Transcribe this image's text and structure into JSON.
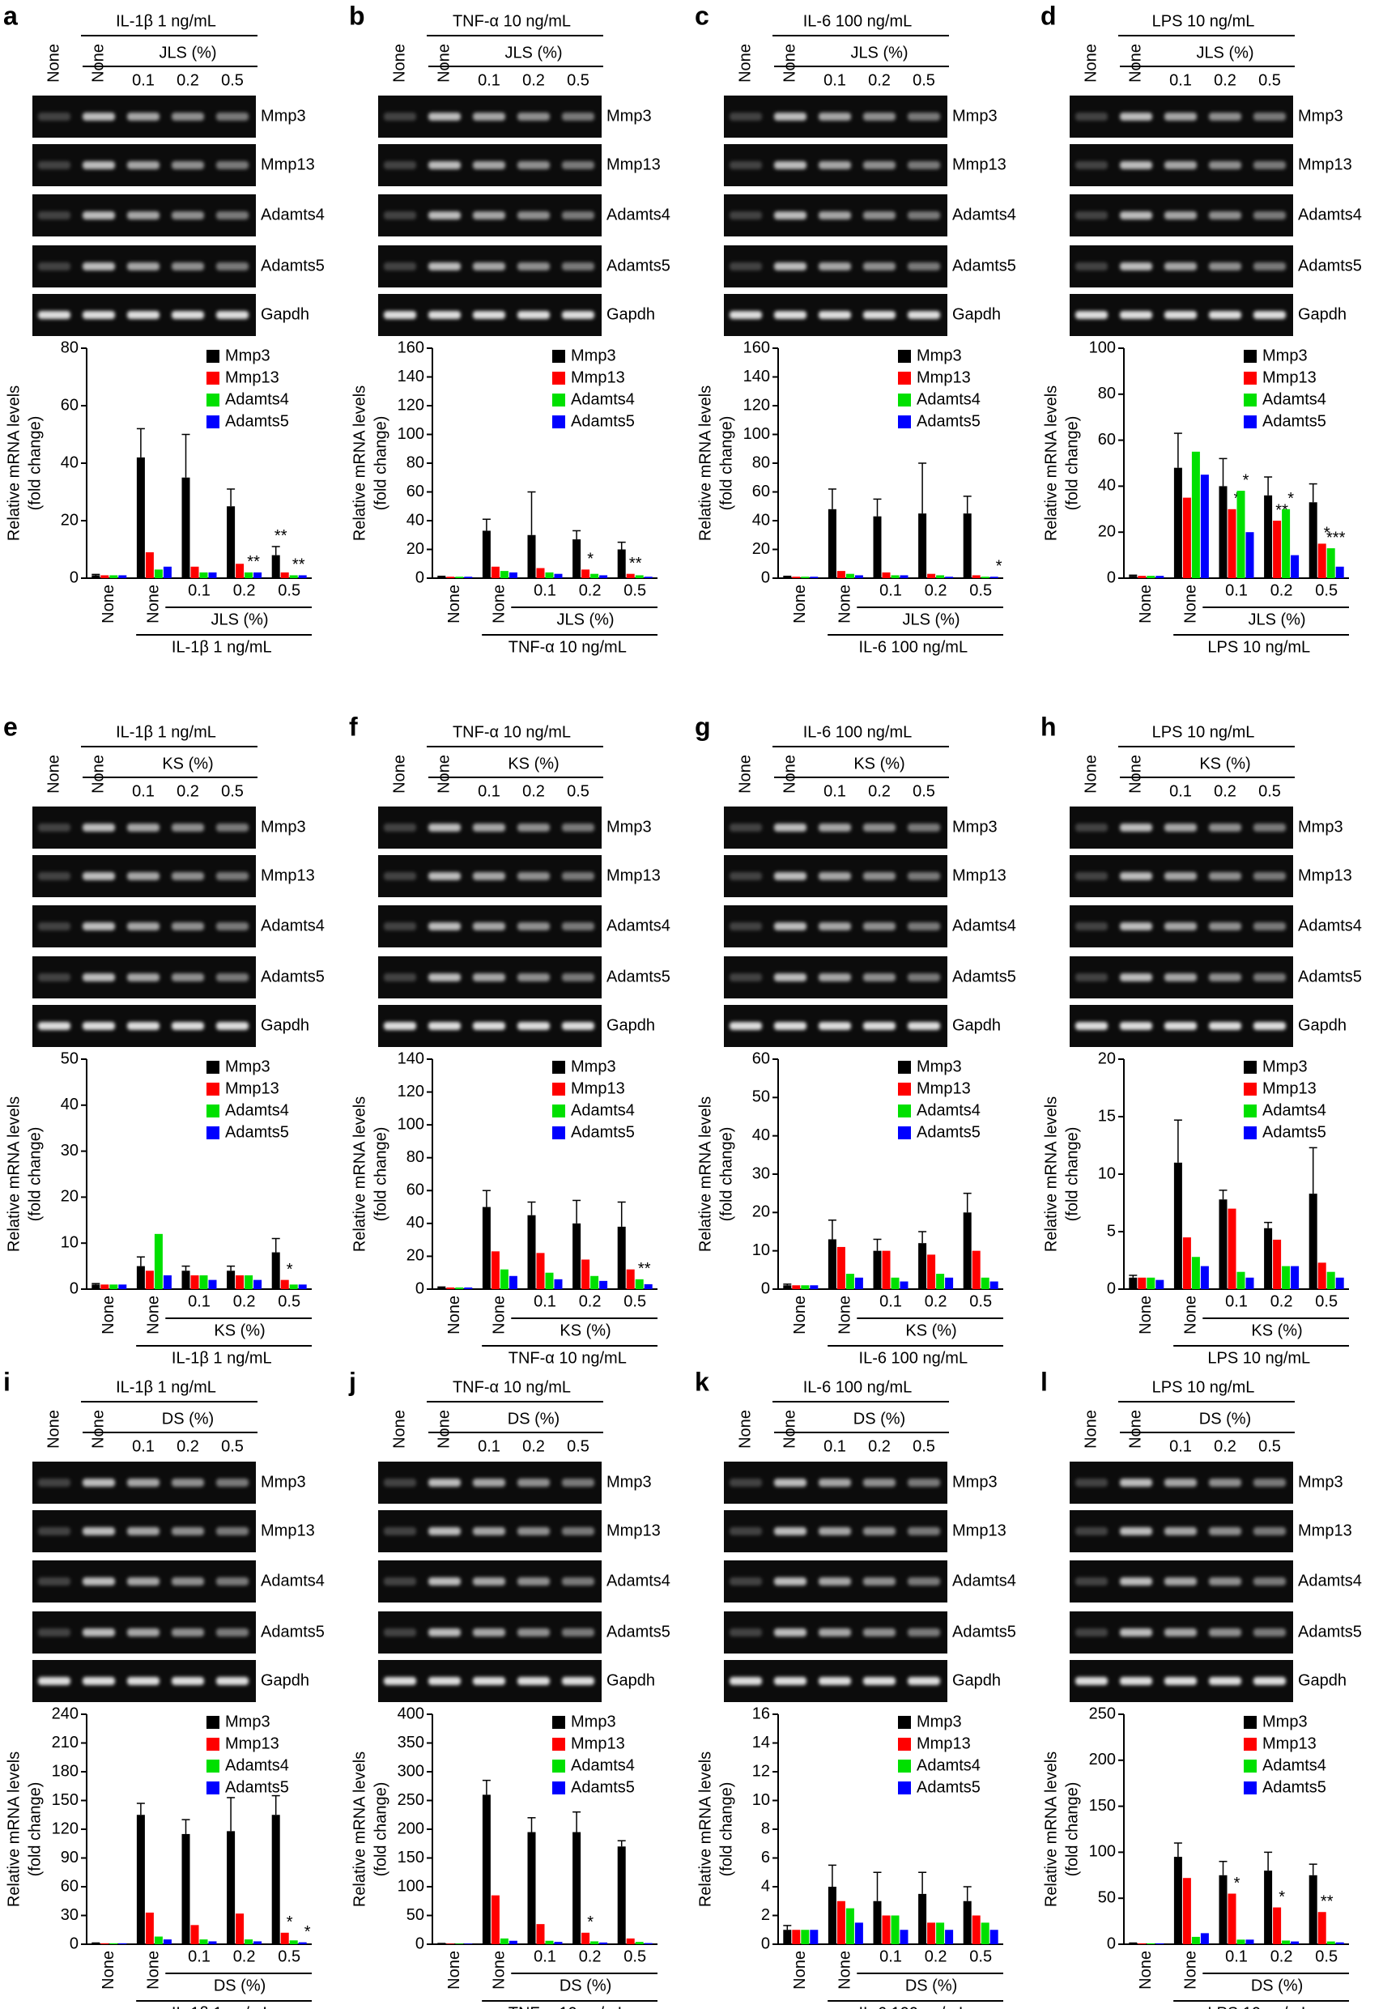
{
  "chart_data": [
    {
      "type": "bar",
      "letter": "a",
      "title": "IL-1β 1 ng/mL",
      "group_label": "JLS (%)",
      "categories": [
        "None",
        "None",
        "0.1",
        "0.2",
        "0.5"
      ],
      "bands": [
        "Mmp3",
        "Mmp13",
        "Adamts4",
        "Adamts5",
        "Gapdh"
      ],
      "ylabel": [
        "Relative mRNA levels",
        "(fold change)"
      ],
      "ylim": [
        0,
        80
      ],
      "yticks": [
        0,
        20,
        40,
        60,
        80
      ],
      "series": [
        {
          "name": "Mmp3",
          "color": "#000000",
          "values": [
            1,
            42,
            35,
            25,
            8
          ],
          "errors": [
            0.3,
            10,
            15,
            6,
            3
          ],
          "stars": [
            null,
            null,
            null,
            null,
            "**"
          ]
        },
        {
          "name": "Mmp13",
          "color": "#ff0000",
          "values": [
            1,
            9,
            4,
            5,
            2
          ]
        },
        {
          "name": "Adamts4",
          "color": "#00e000",
          "values": [
            1,
            3,
            2,
            2,
            1
          ],
          "stars": [
            null,
            null,
            null,
            "**",
            "**"
          ]
        },
        {
          "name": "Adamts5",
          "color": "#0000ff",
          "values": [
            1,
            4,
            2,
            2,
            1
          ]
        }
      ]
    },
    {
      "type": "bar",
      "letter": "b",
      "title": "TNF-α 10 ng/mL",
      "group_label": "JLS (%)",
      "categories": [
        "None",
        "None",
        "0.1",
        "0.2",
        "0.5"
      ],
      "bands": [
        "Mmp3",
        "Mmp13",
        "Adamts4",
        "Adamts5",
        "Gapdh"
      ],
      "ylabel": [
        "Relative mRNA levels",
        "(fold change)"
      ],
      "ylim": [
        0,
        160
      ],
      "yticks": [
        0,
        20,
        40,
        60,
        80,
        100,
        120,
        140,
        160
      ],
      "series": [
        {
          "name": "Mmp3",
          "color": "#000000",
          "values": [
            1,
            33,
            30,
            27,
            20
          ],
          "errors": [
            0.3,
            8,
            30,
            6,
            5
          ]
        },
        {
          "name": "Mmp13",
          "color": "#ff0000",
          "values": [
            1,
            8,
            7,
            6,
            3
          ],
          "stars": [
            null,
            null,
            null,
            "*",
            "**"
          ]
        },
        {
          "name": "Adamts4",
          "color": "#00e000",
          "values": [
            1,
            5,
            4,
            3,
            2
          ]
        },
        {
          "name": "Adamts5",
          "color": "#0000ff",
          "values": [
            1,
            4,
            3,
            2,
            1
          ]
        }
      ]
    },
    {
      "type": "bar",
      "letter": "c",
      "title": "IL-6 100 ng/mL",
      "group_label": "JLS (%)",
      "categories": [
        "None",
        "None",
        "0.1",
        "0.2",
        "0.5"
      ],
      "bands": [
        "Mmp3",
        "Mmp13",
        "Adamts4",
        "Adamts5",
        "Gapdh"
      ],
      "ylabel": [
        "Relative mRNA levels",
        "(fold change)"
      ],
      "ylim": [
        0,
        160
      ],
      "yticks": [
        0,
        20,
        40,
        60,
        80,
        100,
        120,
        140,
        160
      ],
      "series": [
        {
          "name": "Mmp3",
          "color": "#000000",
          "values": [
            1,
            48,
            43,
            45,
            45
          ],
          "errors": [
            0.3,
            14,
            12,
            35,
            12
          ]
        },
        {
          "name": "Mmp13",
          "color": "#ff0000",
          "values": [
            1,
            5,
            4,
            3,
            2
          ]
        },
        {
          "name": "Adamts4",
          "color": "#00e000",
          "values": [
            1,
            3,
            2,
            2,
            1
          ]
        },
        {
          "name": "Adamts5",
          "color": "#0000ff",
          "values": [
            1,
            2,
            2,
            1,
            1
          ],
          "stars": [
            null,
            null,
            null,
            null,
            "*"
          ]
        }
      ]
    },
    {
      "type": "bar",
      "letter": "d",
      "title": "LPS 10 ng/mL",
      "group_label": "JLS (%)",
      "categories": [
        "None",
        "None",
        "0.1",
        "0.2",
        "0.5"
      ],
      "bands": [
        "Mmp3",
        "Mmp13",
        "Adamts4",
        "Adamts5",
        "Gapdh"
      ],
      "ylabel": [
        "Relative mRNA levels",
        "(fold change)"
      ],
      "ylim": [
        0,
        100
      ],
      "yticks": [
        0,
        20,
        40,
        60,
        80,
        100
      ],
      "series": [
        {
          "name": "Mmp3",
          "color": "#000000",
          "values": [
            1,
            48,
            40,
            36,
            33
          ],
          "errors": [
            0.3,
            15,
            12,
            8,
            8
          ]
        },
        {
          "name": "Mmp13",
          "color": "#ff0000",
          "values": [
            1,
            35,
            30,
            25,
            15
          ],
          "stars": [
            null,
            null,
            "*",
            "**",
            "*"
          ]
        },
        {
          "name": "Adamts4",
          "color": "#00e000",
          "values": [
            1,
            55,
            38,
            30,
            13
          ],
          "stars": [
            null,
            null,
            "*",
            "*",
            "***"
          ]
        },
        {
          "name": "Adamts5",
          "color": "#0000ff",
          "values": [
            1,
            45,
            20,
            10,
            5
          ]
        }
      ]
    },
    {
      "type": "bar",
      "letter": "e",
      "title": "IL-1β 1 ng/mL",
      "group_label": "KS (%)",
      "categories": [
        "None",
        "None",
        "0.1",
        "0.2",
        "0.5"
      ],
      "bands": [
        "Mmp3",
        "Mmp13",
        "Adamts4",
        "Adamts5",
        "Gapdh"
      ],
      "ylabel": [
        "Relative mRNA levels",
        "(fold change)"
      ],
      "ylim": [
        0,
        50
      ],
      "yticks": [
        0,
        10,
        20,
        30,
        40,
        50
      ],
      "series": [
        {
          "name": "Mmp3",
          "color": "#000000",
          "values": [
            1,
            5,
            4,
            4,
            8
          ],
          "errors": [
            0.2,
            2,
            1,
            1,
            3
          ]
        },
        {
          "name": "Mmp13",
          "color": "#ff0000",
          "values": [
            1,
            4,
            3,
            3,
            2
          ],
          "stars": [
            null,
            null,
            null,
            null,
            "*"
          ]
        },
        {
          "name": "Adamts4",
          "color": "#00e000",
          "values": [
            1,
            12,
            3,
            3,
            1
          ]
        },
        {
          "name": "Adamts5",
          "color": "#0000ff",
          "values": [
            1,
            3,
            2,
            2,
            1
          ]
        }
      ]
    },
    {
      "type": "bar",
      "letter": "f",
      "title": "TNF-α 10 ng/mL",
      "group_label": "KS (%)",
      "categories": [
        "None",
        "None",
        "0.1",
        "0.2",
        "0.5"
      ],
      "bands": [
        "Mmp3",
        "Mmp13",
        "Adamts4",
        "Adamts5",
        "Gapdh"
      ],
      "ylabel": [
        "Relative mRNA levels",
        "(fold change)"
      ],
      "ylim": [
        0,
        140
      ],
      "yticks": [
        0,
        20,
        40,
        60,
        80,
        100,
        120,
        140
      ],
      "series": [
        {
          "name": "Mmp3",
          "color": "#000000",
          "values": [
            1,
            50,
            45,
            40,
            38
          ],
          "errors": [
            0.3,
            10,
            8,
            14,
            15
          ]
        },
        {
          "name": "Mmp13",
          "color": "#ff0000",
          "values": [
            1,
            23,
            22,
            18,
            12
          ]
        },
        {
          "name": "Adamts4",
          "color": "#00e000",
          "values": [
            1,
            12,
            10,
            8,
            6
          ],
          "stars": [
            null,
            null,
            null,
            null,
            "**"
          ]
        },
        {
          "name": "Adamts5",
          "color": "#0000ff",
          "values": [
            1,
            8,
            6,
            5,
            3
          ]
        }
      ]
    },
    {
      "type": "bar",
      "letter": "g",
      "title": "IL-6 100 ng/mL",
      "group_label": "KS (%)",
      "categories": [
        "None",
        "None",
        "0.1",
        "0.2",
        "0.5"
      ],
      "bands": [
        "Mmp3",
        "Mmp13",
        "Adamts4",
        "Adamts5",
        "Gapdh"
      ],
      "ylabel": [
        "Relative mRNA levels",
        "(fold change)"
      ],
      "ylim": [
        0,
        60
      ],
      "yticks": [
        0,
        10,
        20,
        30,
        40,
        50,
        60
      ],
      "series": [
        {
          "name": "Mmp3",
          "color": "#000000",
          "values": [
            1,
            13,
            10,
            12,
            20
          ],
          "errors": [
            0.3,
            5,
            3,
            3,
            5
          ]
        },
        {
          "name": "Mmp13",
          "color": "#ff0000",
          "values": [
            1,
            11,
            10,
            9,
            10
          ]
        },
        {
          "name": "Adamts4",
          "color": "#00e000",
          "values": [
            1,
            4,
            3,
            4,
            3
          ]
        },
        {
          "name": "Adamts5",
          "color": "#0000ff",
          "values": [
            1,
            3,
            2,
            3,
            2
          ]
        }
      ]
    },
    {
      "type": "bar",
      "letter": "h",
      "title": "LPS 10 ng/mL",
      "group_label": "KS (%)",
      "categories": [
        "None",
        "None",
        "0.1",
        "0.2",
        "0.5"
      ],
      "bands": [
        "Mmp3",
        "Mmp13",
        "Adamts4",
        "Adamts5",
        "Gapdh"
      ],
      "ylabel": [
        "Relative mRNA levels",
        "(fold change)"
      ],
      "ylim": [
        0,
        20
      ],
      "yticks": [
        0,
        5,
        10,
        15,
        20
      ],
      "series": [
        {
          "name": "Mmp3",
          "color": "#000000",
          "values": [
            1,
            11,
            7.8,
            5.3,
            8.3
          ],
          "errors": [
            0.2,
            3.7,
            0.8,
            0.5,
            4
          ]
        },
        {
          "name": "Mmp13",
          "color": "#ff0000",
          "values": [
            1,
            4.5,
            7,
            4.3,
            2.3
          ]
        },
        {
          "name": "Adamts4",
          "color": "#00e000",
          "values": [
            1,
            2.8,
            1.5,
            2,
            1.5
          ]
        },
        {
          "name": "Adamts5",
          "color": "#0000ff",
          "values": [
            0.8,
            2,
            1,
            2,
            1
          ]
        }
      ]
    },
    {
      "type": "bar",
      "letter": "i",
      "title": "IL-1β 1 ng/mL",
      "group_label": "DS (%)",
      "categories": [
        "None",
        "None",
        "0.1",
        "0.2",
        "0.5"
      ],
      "bands": [
        "Mmp3",
        "Mmp13",
        "Adamts4",
        "Adamts5",
        "Gapdh"
      ],
      "ylabel": [
        "Relative mRNA levels",
        "(fold change)"
      ],
      "ylim": [
        0,
        240
      ],
      "yticks": [
        0,
        30,
        60,
        90,
        120,
        150,
        180,
        210,
        240
      ],
      "series": [
        {
          "name": "Mmp3",
          "color": "#000000",
          "values": [
            1,
            135,
            115,
            118,
            135
          ],
          "errors": [
            0.3,
            12,
            15,
            35,
            20
          ]
        },
        {
          "name": "Mmp13",
          "color": "#ff0000",
          "values": [
            1,
            33,
            20,
            32,
            12
          ],
          "stars": [
            null,
            null,
            null,
            null,
            "*"
          ]
        },
        {
          "name": "Adamts4",
          "color": "#00e000",
          "values": [
            1,
            8,
            5,
            5,
            4
          ]
        },
        {
          "name": "Adamts5",
          "color": "#0000ff",
          "values": [
            1,
            5,
            3,
            3,
            2
          ],
          "stars": [
            null,
            null,
            null,
            null,
            "*"
          ]
        }
      ]
    },
    {
      "type": "bar",
      "letter": "j",
      "title": "TNF-α 10 ng/mL",
      "group_label": "DS (%)",
      "categories": [
        "None",
        "None",
        "0.1",
        "0.2",
        "0.5"
      ],
      "bands": [
        "Mmp3",
        "Mmp13",
        "Adamts4",
        "Adamts5",
        "Gapdh"
      ],
      "ylabel": [
        "Relative mRNA levels",
        "(fold change)"
      ],
      "ylim": [
        0,
        400
      ],
      "yticks": [
        0,
        50,
        100,
        150,
        200,
        250,
        300,
        350,
        400
      ],
      "series": [
        {
          "name": "Mmp3",
          "color": "#000000",
          "values": [
            1,
            260,
            195,
            195,
            170
          ],
          "errors": [
            0.3,
            25,
            25,
            35,
            10
          ]
        },
        {
          "name": "Mmp13",
          "color": "#ff0000",
          "values": [
            1,
            85,
            35,
            20,
            10
          ],
          "stars": [
            null,
            null,
            null,
            "*",
            null
          ]
        },
        {
          "name": "Adamts4",
          "color": "#00e000",
          "values": [
            1,
            10,
            6,
            5,
            4
          ]
        },
        {
          "name": "Adamts5",
          "color": "#0000ff",
          "values": [
            1,
            6,
            4,
            3,
            2
          ]
        }
      ]
    },
    {
      "type": "bar",
      "letter": "k",
      "title": "IL-6 100 ng/mL",
      "group_label": "DS (%)",
      "categories": [
        "None",
        "None",
        "0.1",
        "0.2",
        "0.5"
      ],
      "bands": [
        "Mmp3",
        "Mmp13",
        "Adamts4",
        "Adamts5",
        "Gapdh"
      ],
      "ylabel": [
        "Relative mRNA levels",
        "(fold change)"
      ],
      "ylim": [
        0,
        16
      ],
      "yticks": [
        0,
        2,
        4,
        6,
        8,
        10,
        12,
        14,
        16
      ],
      "series": [
        {
          "name": "Mmp3",
          "color": "#000000",
          "values": [
            1,
            4,
            3,
            3.5,
            3
          ],
          "errors": [
            0.3,
            1.5,
            2,
            1.5,
            1
          ]
        },
        {
          "name": "Mmp13",
          "color": "#ff0000",
          "values": [
            1,
            3,
            2,
            1.5,
            2
          ]
        },
        {
          "name": "Adamts4",
          "color": "#00e000",
          "values": [
            1,
            2.5,
            2,
            1.5,
            1.5
          ]
        },
        {
          "name": "Adamts5",
          "color": "#0000ff",
          "values": [
            1,
            1.5,
            1,
            1,
            1
          ]
        }
      ]
    },
    {
      "type": "bar",
      "letter": "l",
      "title": "LPS 10 ng/mL",
      "group_label": "DS (%)",
      "categories": [
        "None",
        "None",
        "0.1",
        "0.2",
        "0.5"
      ],
      "bands": [
        "Mmp3",
        "Mmp13",
        "Adamts4",
        "Adamts5",
        "Gapdh"
      ],
      "ylabel": [
        "Relative mRNA levels",
        "(fold change)"
      ],
      "ylim": [
        0,
        250
      ],
      "yticks": [
        0,
        50,
        100,
        150,
        200,
        250
      ],
      "series": [
        {
          "name": "Mmp3",
          "color": "#000000",
          "values": [
            1,
            95,
            75,
            80,
            75
          ],
          "errors": [
            0.3,
            15,
            15,
            20,
            12
          ]
        },
        {
          "name": "Mmp13",
          "color": "#ff0000",
          "values": [
            1,
            72,
            55,
            40,
            35
          ],
          "stars": [
            null,
            null,
            "*",
            "*",
            "**"
          ]
        },
        {
          "name": "Adamts4",
          "color": "#00e000",
          "values": [
            1,
            8,
            5,
            4,
            3
          ]
        },
        {
          "name": "Adamts5",
          "color": "#0000ff",
          "values": [
            1,
            12,
            5,
            3,
            2
          ]
        }
      ]
    }
  ]
}
